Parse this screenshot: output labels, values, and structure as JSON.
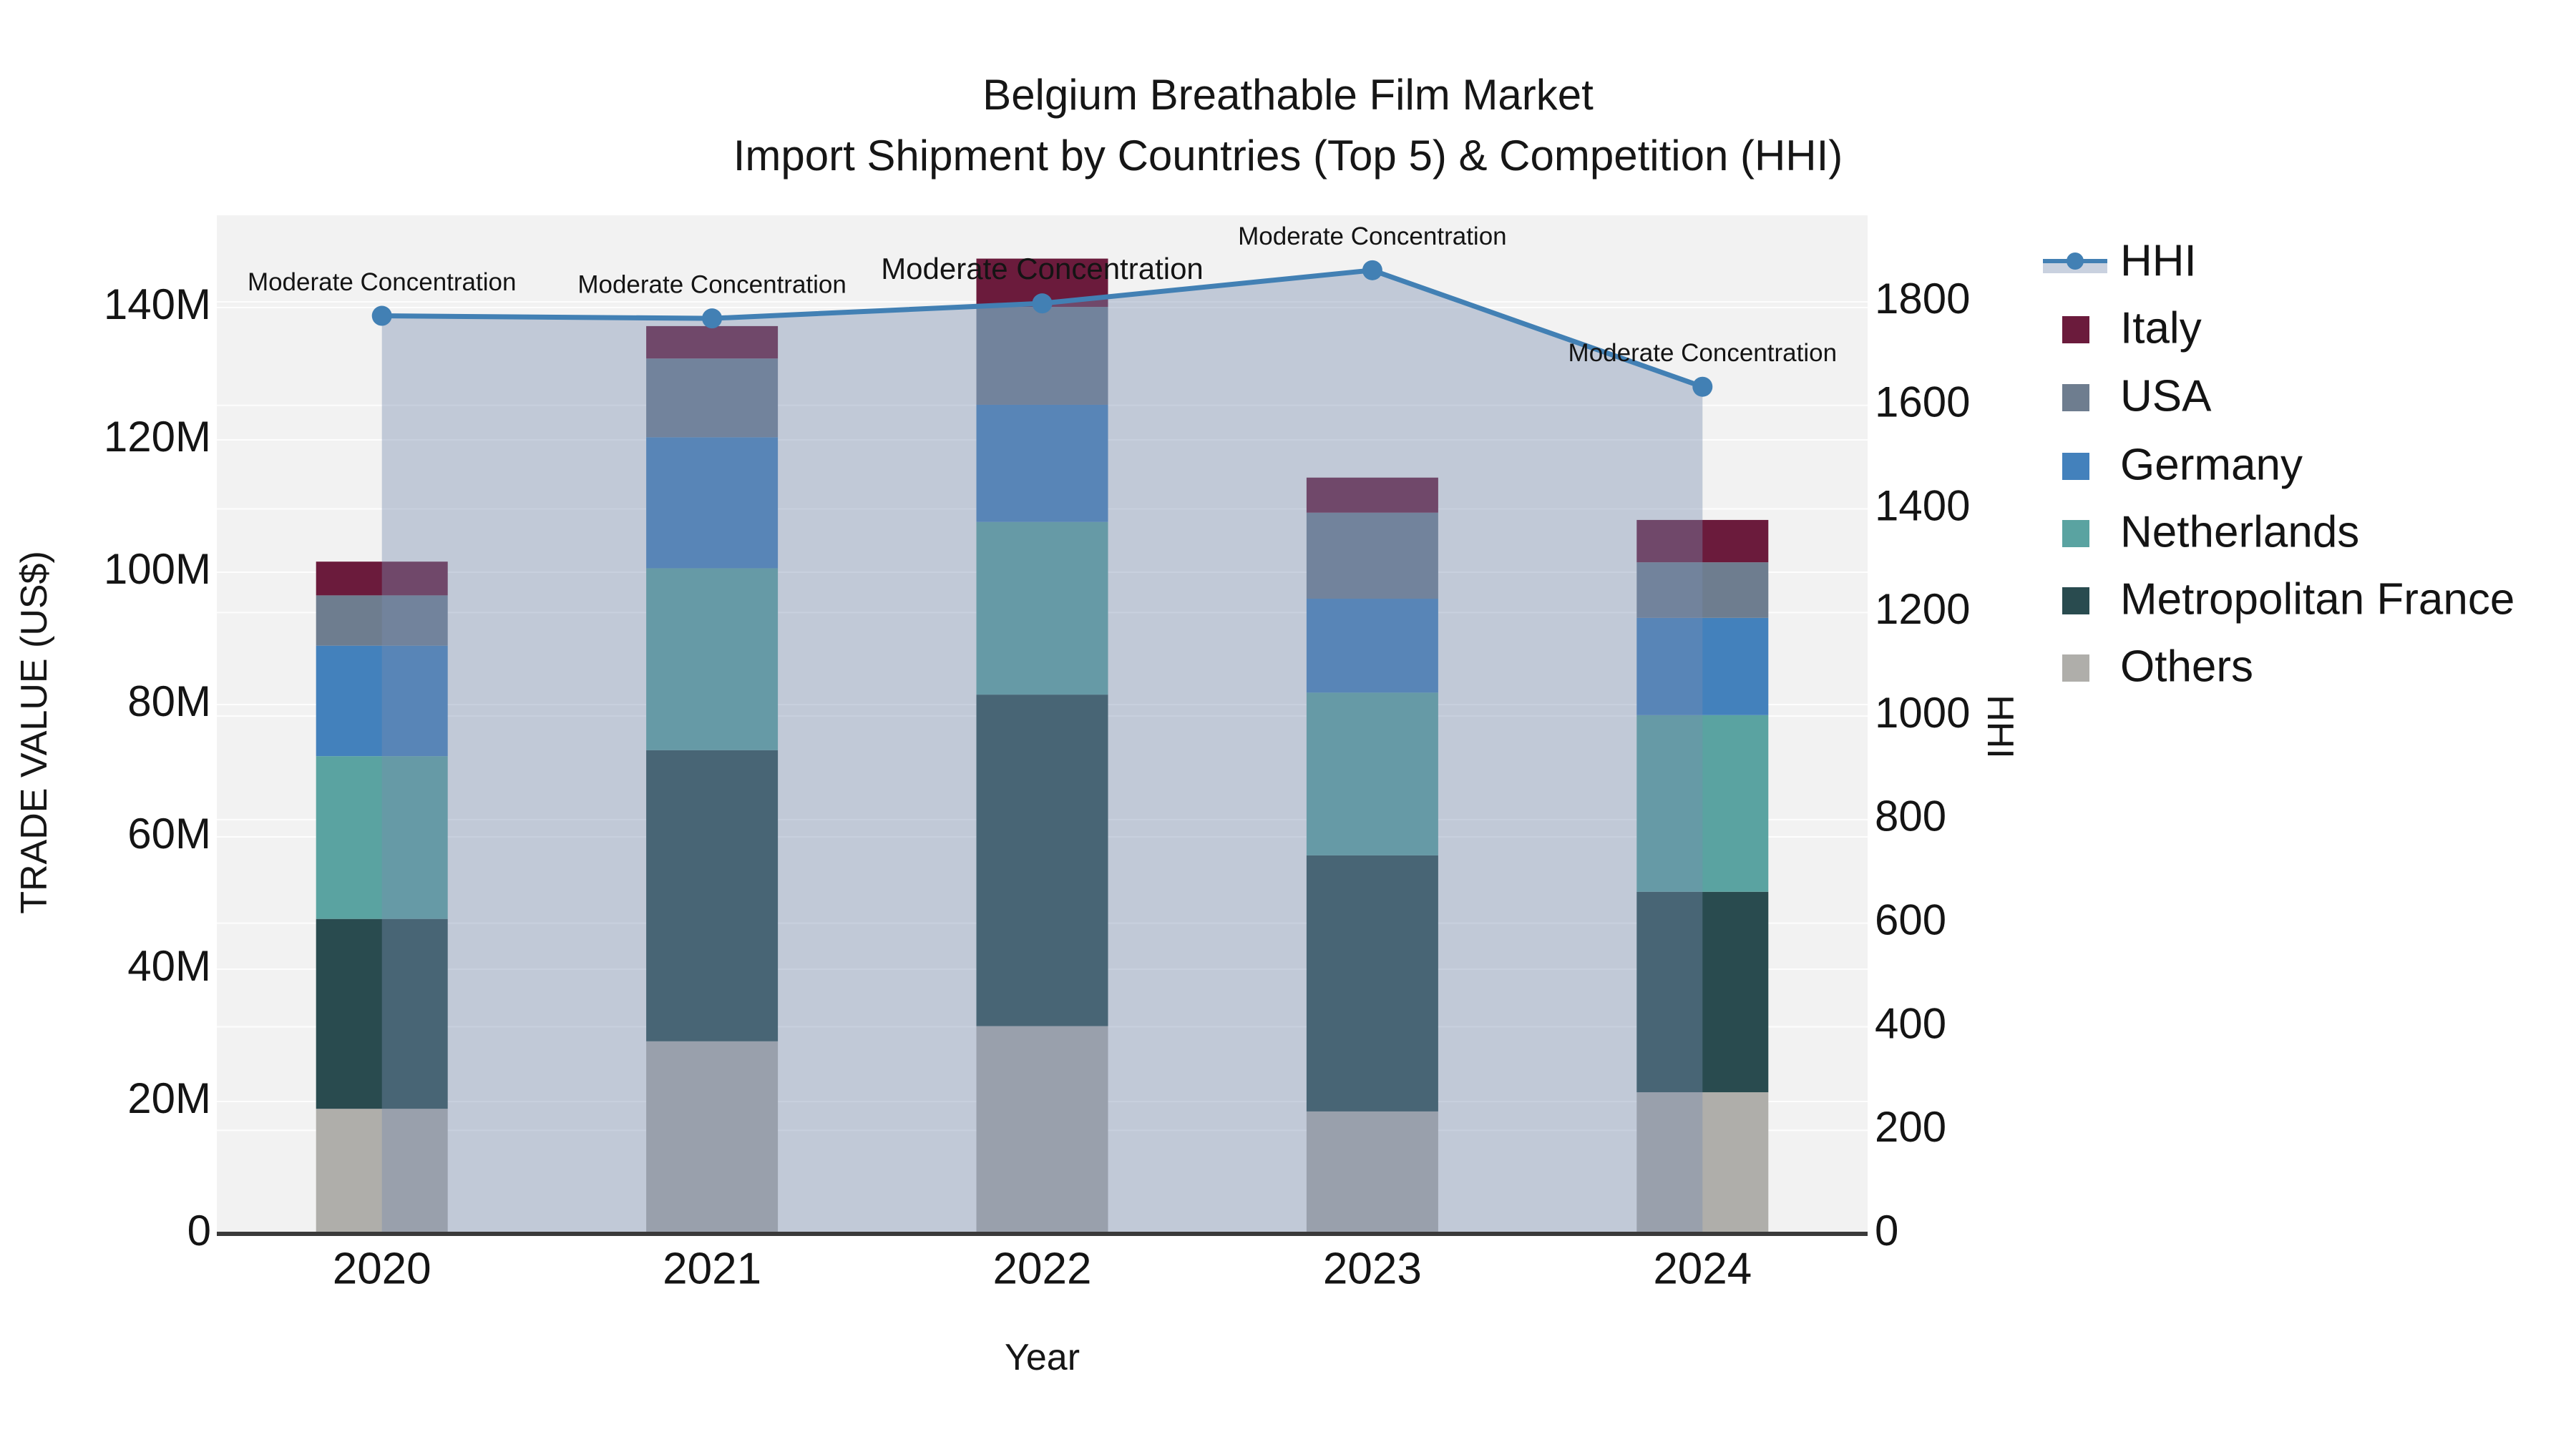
{
  "title": {
    "line1": "Belgium Breathable Film Market",
    "line2": "Import Shipment by Countries (Top 5) & Competition (HHI)"
  },
  "axes": {
    "x": {
      "title": "Year",
      "categories": [
        "2020",
        "2021",
        "2022",
        "2023",
        "2024"
      ]
    },
    "y_left": {
      "title": "TRADE VALUE (US$)",
      "tick_labels": [
        "0",
        "20M",
        "40M",
        "60M",
        "80M",
        "100M",
        "120M",
        "140M"
      ],
      "tick_values": [
        0,
        20,
        40,
        60,
        80,
        100,
        120,
        140
      ],
      "unit": "million US$"
    },
    "y_right": {
      "title": "HHI",
      "tick_labels": [
        "0",
        "200",
        "400",
        "600",
        "800",
        "1000",
        "1200",
        "1400",
        "1600",
        "1800"
      ],
      "tick_values": [
        0,
        200,
        400,
        600,
        800,
        1000,
        1200,
        1400,
        1600,
        1800
      ]
    }
  },
  "legend": {
    "items": [
      {
        "label": "HHI",
        "type": "line",
        "color": "#4280B4",
        "band_color": "rgba(120,140,175,0.40)"
      },
      {
        "label": "Italy",
        "type": "bar",
        "color": "#6B1B3C"
      },
      {
        "label": "USA",
        "type": "bar",
        "color": "#6E7D8F"
      },
      {
        "label": "Germany",
        "type": "bar",
        "color": "#4381BC"
      },
      {
        "label": "Netherlands",
        "type": "bar",
        "color": "#5AA3A1"
      },
      {
        "label": "Metropolitan France",
        "type": "bar",
        "color": "#294B4F"
      },
      {
        "label": "Others",
        "type": "bar",
        "color": "#AFAEAA"
      }
    ]
  },
  "chart_data": {
    "type": "bar-line-combo",
    "subtype": "stacked bars (left axis, M US$) + HHI line with translucent area fill (right axis)",
    "categories": [
      "2020",
      "2021",
      "2022",
      "2023",
      "2024"
    ],
    "bar_stack_order_bottom_to_top": [
      "Others",
      "Metropolitan France",
      "Netherlands",
      "Germany",
      "USA",
      "Italy"
    ],
    "series": [
      {
        "name": "Others",
        "type": "bar",
        "color": "#AFAEAA",
        "values": [
          18.9,
          29.1,
          31.4,
          18.5,
          21.4
        ]
      },
      {
        "name": "Metropolitan France",
        "type": "bar",
        "color": "#294B4F",
        "values": [
          28.7,
          44.0,
          50.1,
          38.7,
          30.3
        ]
      },
      {
        "name": "Netherlands",
        "type": "bar",
        "color": "#5AA3A1",
        "values": [
          24.6,
          27.5,
          26.1,
          24.6,
          26.7
        ]
      },
      {
        "name": "Germany",
        "type": "bar",
        "color": "#4381BC",
        "values": [
          16.7,
          19.8,
          17.7,
          14.2,
          14.7
        ]
      },
      {
        "name": "USA",
        "type": "bar",
        "color": "#6E7D8F",
        "values": [
          7.6,
          11.9,
          14.8,
          13.0,
          8.4
        ]
      },
      {
        "name": "Italy",
        "type": "bar",
        "color": "#6B1B3C",
        "values": [
          5.1,
          4.9,
          7.3,
          5.3,
          6.4
        ]
      }
    ],
    "bar_totals_M": [
      101.6,
      137.2,
      147.4,
      114.3,
      107.9
    ],
    "line_series": {
      "name": "HHI",
      "axis": "right",
      "color": "#4280B4",
      "fill_color": "rgba(120,140,175,0.40)",
      "values": [
        1773,
        1768,
        1797,
        1861,
        1636
      ]
    },
    "annotations": [
      {
        "text": "Moderate Concentration",
        "category": "2020",
        "font_px": 35
      },
      {
        "text": "Moderate Concentration",
        "category": "2021",
        "font_px": 35
      },
      {
        "text": "Moderate Concentration",
        "category": "2022",
        "font_px": 42
      },
      {
        "text": "Moderate Concentration",
        "category": "2023",
        "font_px": 35
      },
      {
        "text": "Moderate Concentration",
        "category": "2024",
        "font_px": 35
      }
    ],
    "xlabel": "Year",
    "ylabel_left": "TRADE VALUE (US$)",
    "ylabel_right": "HHI",
    "ylim_left": [
      0,
      154
    ],
    "ylim_right": [
      0,
      1967
    ],
    "grid": true,
    "legend_position": "right",
    "plot_bg": "#F2F2F2",
    "grid_color": "#FFFFFF",
    "axis_line_color": "#3A3A3A"
  }
}
